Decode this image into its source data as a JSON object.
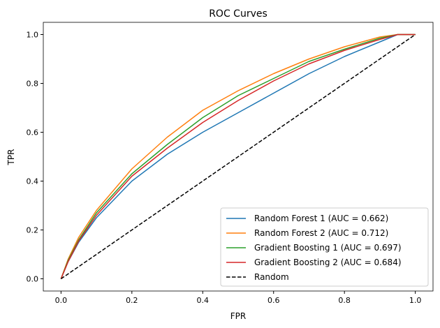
{
  "chart_data": {
    "type": "line",
    "title": "ROC Curves",
    "xlabel": "FPR",
    "ylabel": "TPR",
    "xlim": [
      -0.05,
      1.05
    ],
    "ylim": [
      -0.05,
      1.05
    ],
    "xticks": [
      "0.0",
      "0.2",
      "0.4",
      "0.6",
      "0.8",
      "1.0"
    ],
    "yticks": [
      "0.0",
      "0.2",
      "0.4",
      "0.6",
      "0.8",
      "1.0"
    ],
    "grid": false,
    "legend": "lower-right",
    "series": [
      {
        "name": "Random Forest 1 (AUC = 0.662)",
        "color": "#1f77b4",
        "style": "solid",
        "x": [
          0,
          0.02,
          0.05,
          0.1,
          0.2,
          0.3,
          0.4,
          0.5,
          0.6,
          0.7,
          0.8,
          0.9,
          0.95,
          1
        ],
        "y": [
          0,
          0.07,
          0.15,
          0.25,
          0.4,
          0.51,
          0.6,
          0.68,
          0.76,
          0.84,
          0.91,
          0.97,
          1,
          1
        ]
      },
      {
        "name": "Random Forest 2 (AUC = 0.712)",
        "color": "#ff7f0e",
        "style": "solid",
        "x": [
          0,
          0.02,
          0.05,
          0.1,
          0.2,
          0.3,
          0.4,
          0.5,
          0.6,
          0.7,
          0.8,
          0.9,
          0.95,
          1
        ],
        "y": [
          0,
          0.08,
          0.17,
          0.28,
          0.45,
          0.58,
          0.69,
          0.77,
          0.84,
          0.9,
          0.95,
          0.99,
          1,
          1
        ]
      },
      {
        "name": "Gradient Boosting 1 (AUC = 0.697)",
        "color": "#2ca02c",
        "style": "solid",
        "x": [
          0,
          0.02,
          0.05,
          0.1,
          0.2,
          0.3,
          0.4,
          0.5,
          0.6,
          0.7,
          0.8,
          0.9,
          0.95,
          1
        ],
        "y": [
          0,
          0.075,
          0.16,
          0.27,
          0.43,
          0.55,
          0.66,
          0.75,
          0.82,
          0.89,
          0.94,
          0.985,
          1,
          1
        ]
      },
      {
        "name": "Gradient Boosting 2 (AUC = 0.684)",
        "color": "#d62728",
        "style": "solid",
        "x": [
          0,
          0.02,
          0.05,
          0.1,
          0.2,
          0.3,
          0.4,
          0.5,
          0.6,
          0.7,
          0.8,
          0.9,
          0.95,
          1
        ],
        "y": [
          0,
          0.07,
          0.155,
          0.26,
          0.42,
          0.535,
          0.64,
          0.73,
          0.81,
          0.88,
          0.935,
          0.98,
          1,
          1
        ]
      },
      {
        "name": "Random",
        "color": "#000000",
        "style": "dashed",
        "x": [
          0,
          1
        ],
        "y": [
          0,
          1
        ]
      }
    ]
  }
}
